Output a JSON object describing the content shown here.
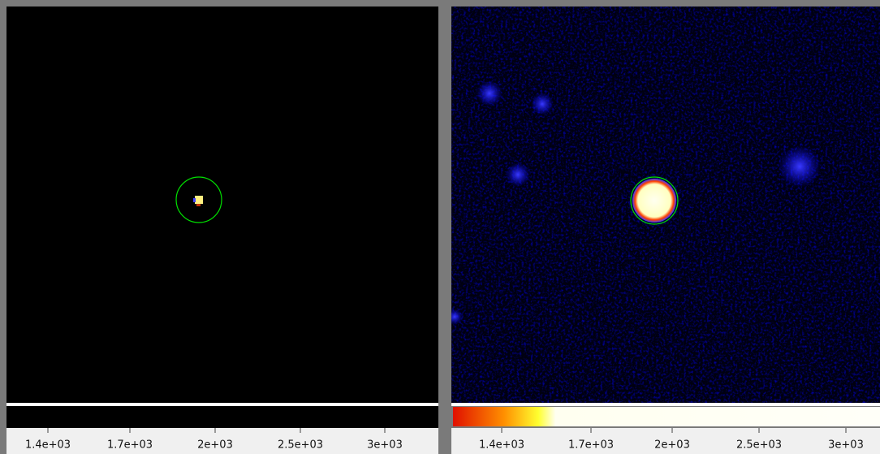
{
  "panels": [
    {
      "colorbar_ticks": [
        "1.4e+03",
        "1.7e+03",
        "2e+03",
        "2.5e+03",
        "3e+03"
      ]
    },
    {
      "colorbar_ticks": [
        "1.4e+03",
        "1.7e+03",
        "2e+03",
        "2.5e+03",
        "3e+03"
      ]
    }
  ]
}
